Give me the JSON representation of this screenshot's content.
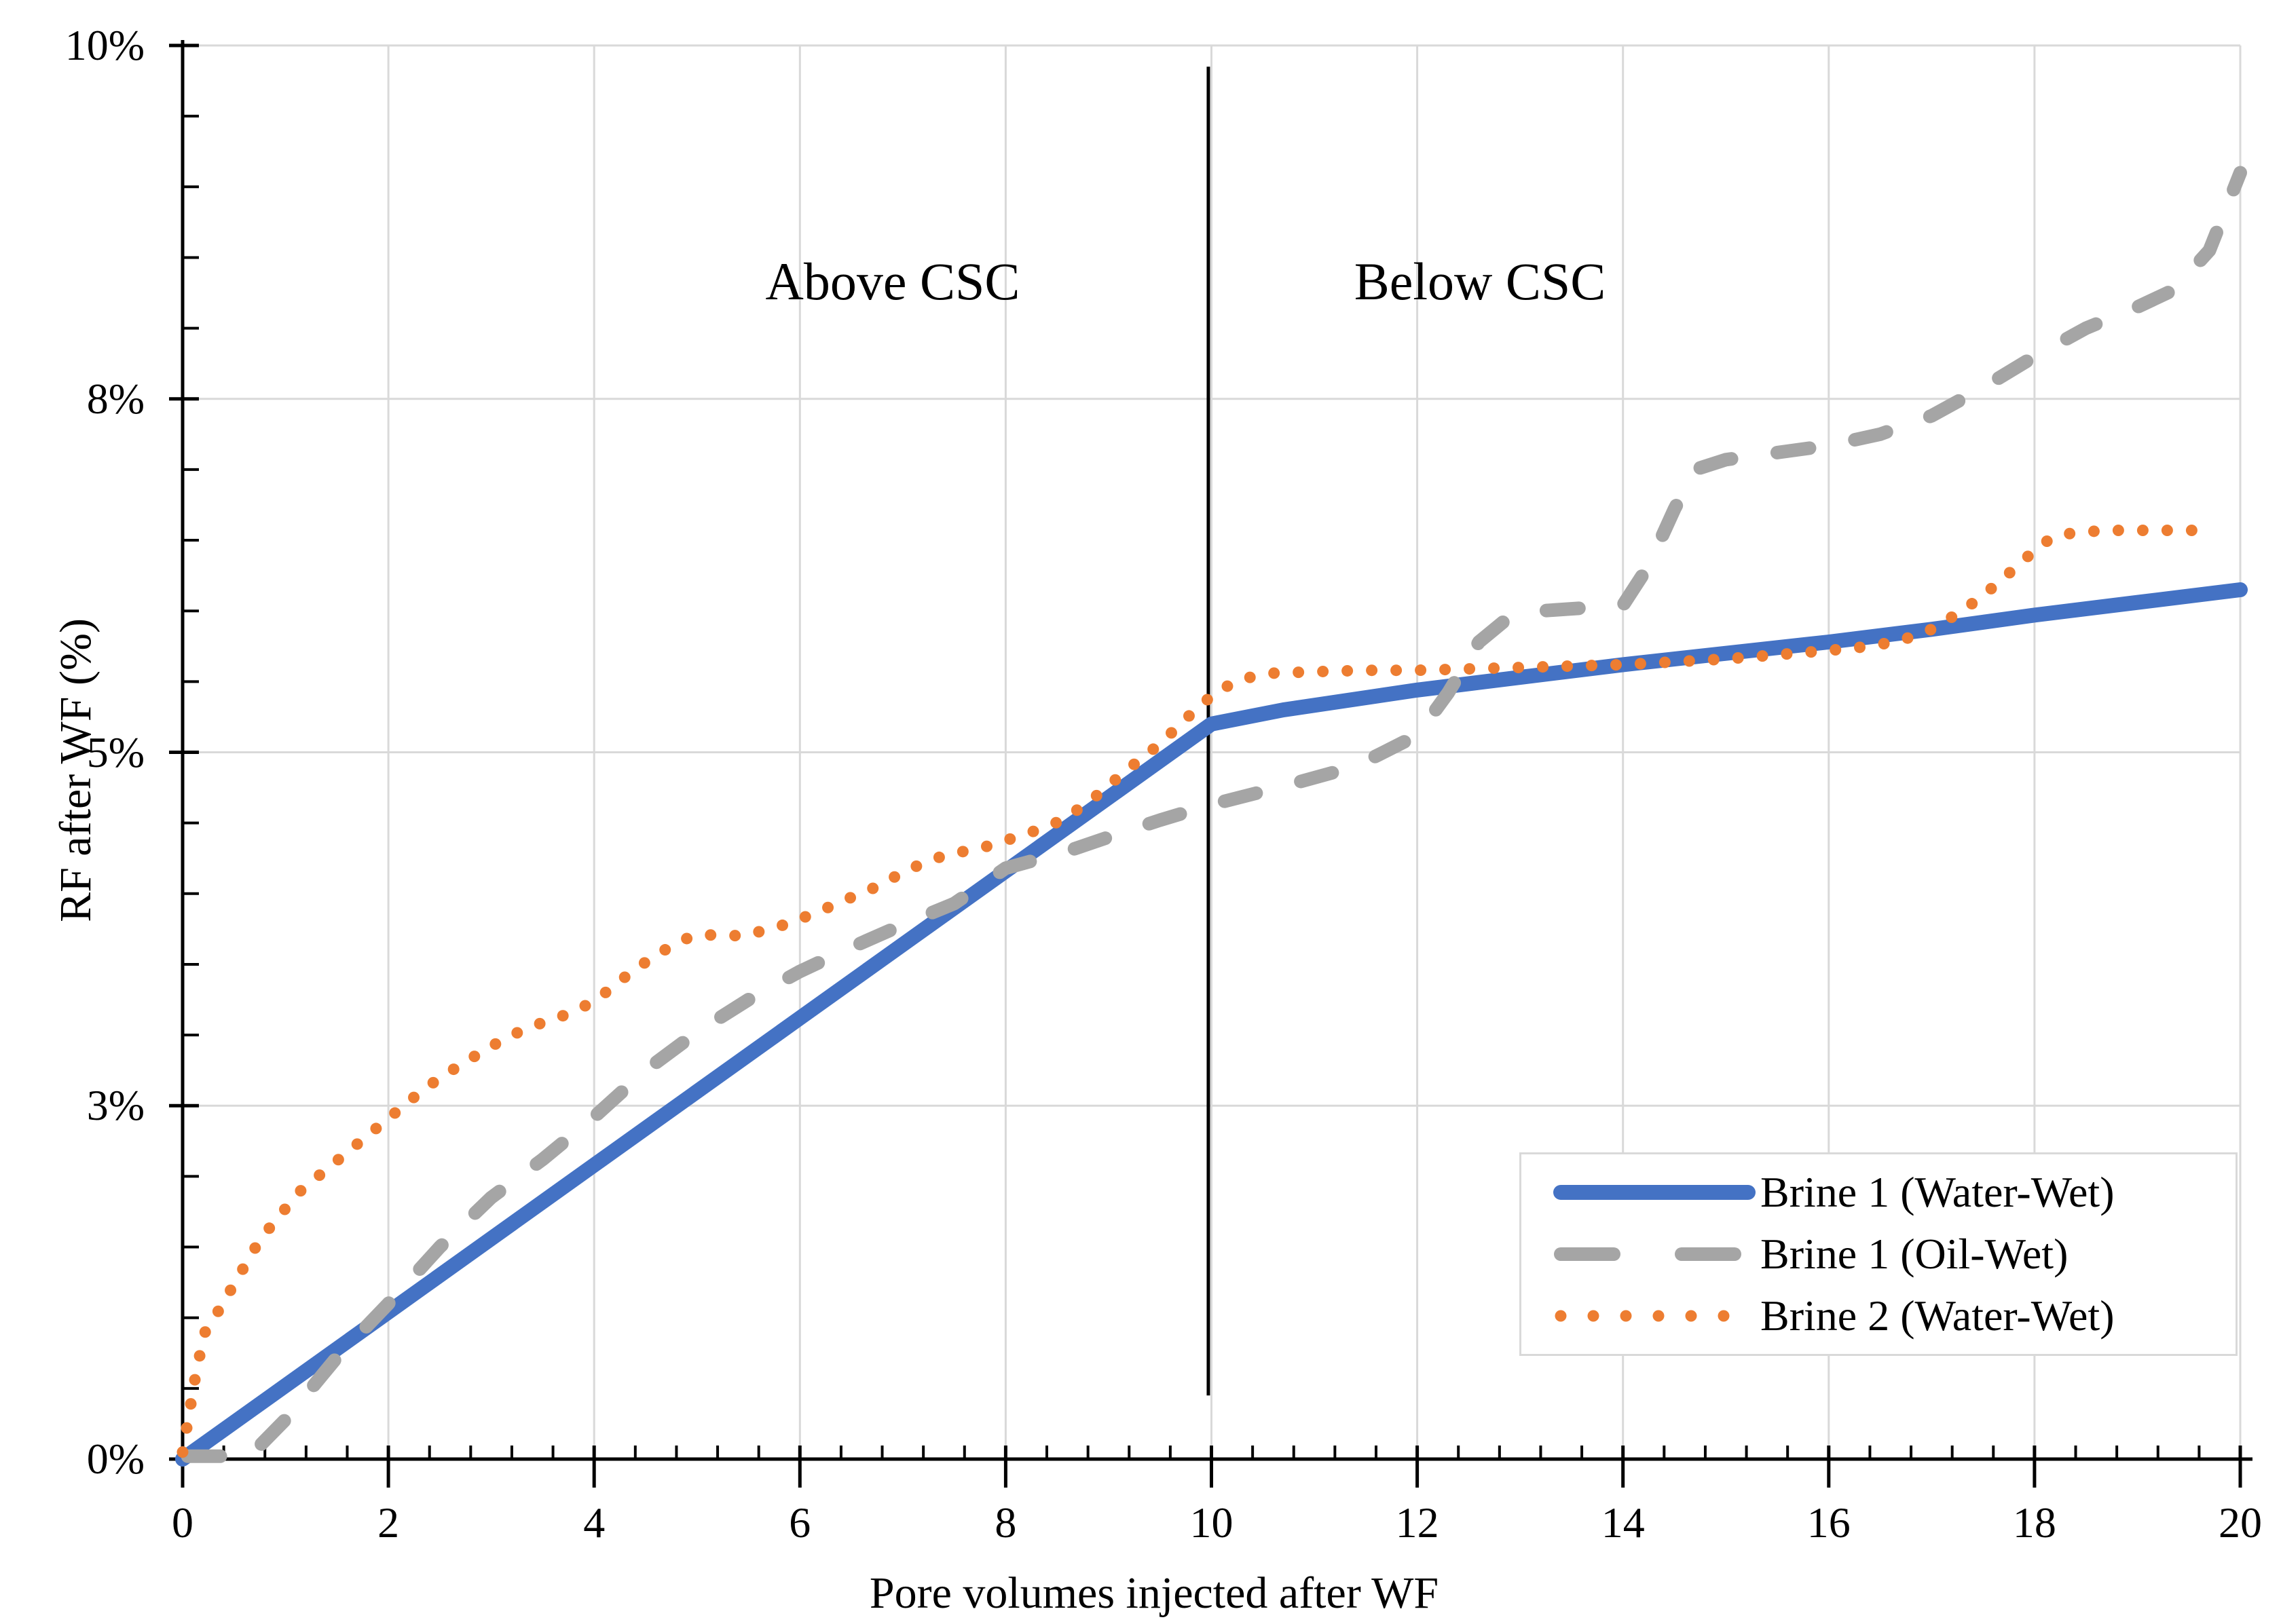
{
  "chart_data": {
    "type": "line",
    "title": "",
    "xlabel": "Pore volumes injected after WF",
    "ylabel": "RF after WF (%)",
    "xlim": [
      0,
      20
    ],
    "ylim": [
      0,
      10
    ],
    "grid": true,
    "background_color": "#ffffff",
    "gridline_color": "#d9d9d9",
    "axis_color": "#000000",
    "x_major_ticks": [
      {
        "value": 0,
        "label": "0"
      },
      {
        "value": 2,
        "label": "2"
      },
      {
        "value": 4,
        "label": "4"
      },
      {
        "value": 6,
        "label": "6"
      },
      {
        "value": 8,
        "label": "8"
      },
      {
        "value": 10,
        "label": "10"
      },
      {
        "value": 12,
        "label": "12"
      },
      {
        "value": 14,
        "label": "14"
      },
      {
        "value": 16,
        "label": "16"
      },
      {
        "value": 18,
        "label": "18"
      },
      {
        "value": 20,
        "label": "20"
      }
    ],
    "y_major_ticks": [
      {
        "value": 0,
        "label": "0%"
      },
      {
        "value": 2.5,
        "label": "3%"
      },
      {
        "value": 5,
        "label": "5%"
      },
      {
        "value": 7.5,
        "label": "8%"
      },
      {
        "value": 10,
        "label": "10%"
      }
    ],
    "x_minor_step": 0.4,
    "y_minor_step": 0.5,
    "annotations": [
      {
        "text": "Above CSC",
        "x": 6.9,
        "y": 8.35
      },
      {
        "text": "Below CSC",
        "x": 12.6,
        "y": 8.35
      }
    ],
    "divider_line": {
      "x": 9.97,
      "y_from": 0.45,
      "y_to": 9.85,
      "color": "#000000"
    },
    "legend_position": "bottom-right",
    "series": [
      {
        "name": "Brine 1 (Water-Wet)",
        "style": "solid",
        "color": "#4472c4",
        "points": [
          [
            0,
            0
          ],
          [
            2,
            1.04
          ],
          [
            4,
            2.08
          ],
          [
            6,
            3.12
          ],
          [
            8,
            4.16
          ],
          [
            9,
            4.68
          ],
          [
            10,
            5.2
          ],
          [
            10.7,
            5.3
          ],
          [
            12,
            5.44
          ],
          [
            13,
            5.53
          ],
          [
            14,
            5.62
          ],
          [
            15,
            5.7
          ],
          [
            16,
            5.78
          ],
          [
            17,
            5.87
          ],
          [
            18,
            5.97
          ],
          [
            19,
            6.06
          ],
          [
            20,
            6.15
          ]
        ]
      },
      {
        "name": "Brine 1 (Oil-Wet)",
        "style": "dashed",
        "color": "#a5a5a5",
        "points": [
          [
            0.05,
            0.02
          ],
          [
            0.65,
            0.02
          ],
          [
            1,
            0.28
          ],
          [
            1.5,
            0.72
          ],
          [
            2,
            1.1
          ],
          [
            2.5,
            1.5
          ],
          [
            3,
            1.85
          ],
          [
            3.5,
            2.12
          ],
          [
            4,
            2.42
          ],
          [
            4.5,
            2.75
          ],
          [
            5,
            3.02
          ],
          [
            5.5,
            3.25
          ],
          [
            6,
            3.45
          ],
          [
            6.5,
            3.62
          ],
          [
            7,
            3.78
          ],
          [
            7.5,
            3.93
          ],
          [
            8,
            4.18
          ],
          [
            8.6,
            4.3
          ],
          [
            9,
            4.4
          ],
          [
            9.5,
            4.52
          ],
          [
            10,
            4.63
          ],
          [
            10.7,
            4.76
          ],
          [
            11.4,
            4.9
          ],
          [
            12,
            5.12
          ],
          [
            12.3,
            5.42
          ],
          [
            12.6,
            5.78
          ],
          [
            12.9,
            5.96
          ],
          [
            13.2,
            6.0
          ],
          [
            14,
            6.04
          ],
          [
            14.25,
            6.32
          ],
          [
            14.5,
            6.72
          ],
          [
            14.7,
            7.0
          ],
          [
            15,
            7.07
          ],
          [
            15.5,
            7.12
          ],
          [
            16,
            7.17
          ],
          [
            16.5,
            7.25
          ],
          [
            17,
            7.38
          ],
          [
            17.5,
            7.58
          ],
          [
            18,
            7.8
          ],
          [
            18.5,
            8.0
          ],
          [
            19,
            8.15
          ],
          [
            19.35,
            8.27
          ],
          [
            19.7,
            8.55
          ],
          [
            20,
            9.1
          ]
        ]
      },
      {
        "name": "Brine 2 (Water-Wet)",
        "style": "dotted",
        "color": "#ed7d31",
        "points": [
          [
            0,
            0.05
          ],
          [
            0.07,
            0.35
          ],
          [
            0.14,
            0.65
          ],
          [
            0.22,
            0.9
          ],
          [
            0.35,
            1.05
          ],
          [
            0.55,
            1.3
          ],
          [
            0.75,
            1.55
          ],
          [
            0.95,
            1.73
          ],
          [
            1.15,
            1.9
          ],
          [
            1.35,
            2.02
          ],
          [
            1.55,
            2.14
          ],
          [
            1.75,
            2.26
          ],
          [
            1.95,
            2.38
          ],
          [
            2.15,
            2.5
          ],
          [
            2.35,
            2.62
          ],
          [
            2.55,
            2.72
          ],
          [
            2.75,
            2.81
          ],
          [
            2.95,
            2.9
          ],
          [
            3.15,
            2.98
          ],
          [
            3.35,
            3.05
          ],
          [
            3.55,
            3.1
          ],
          [
            3.75,
            3.15
          ],
          [
            3.95,
            3.22
          ],
          [
            4.15,
            3.32
          ],
          [
            4.35,
            3.44
          ],
          [
            4.55,
            3.54
          ],
          [
            4.75,
            3.63
          ],
          [
            4.95,
            3.7
          ],
          [
            5.2,
            3.71
          ],
          [
            5.45,
            3.7
          ],
          [
            5.65,
            3.74
          ],
          [
            5.9,
            3.79
          ],
          [
            6.1,
            3.85
          ],
          [
            6.3,
            3.91
          ],
          [
            6.55,
            3.99
          ],
          [
            6.75,
            4.05
          ],
          [
            6.95,
            4.13
          ],
          [
            7.15,
            4.2
          ],
          [
            7.4,
            4.27
          ],
          [
            7.6,
            4.3
          ],
          [
            7.85,
            4.34
          ],
          [
            8.1,
            4.4
          ],
          [
            8.35,
            4.46
          ],
          [
            8.55,
            4.52
          ],
          [
            8.75,
            4.62
          ],
          [
            8.95,
            4.73
          ],
          [
            9.15,
            4.86
          ],
          [
            9.4,
            5.0
          ],
          [
            9.6,
            5.13
          ],
          [
            9.8,
            5.27
          ],
          [
            10.05,
            5.43
          ],
          [
            10.3,
            5.52
          ],
          [
            10.6,
            5.56
          ],
          [
            11,
            5.57
          ],
          [
            11.5,
            5.58
          ],
          [
            12,
            5.58
          ],
          [
            12.5,
            5.59
          ],
          [
            13,
            5.6
          ],
          [
            13.5,
            5.61
          ],
          [
            14,
            5.62
          ],
          [
            14.5,
            5.64
          ],
          [
            15,
            5.66
          ],
          [
            15.5,
            5.69
          ],
          [
            16,
            5.72
          ],
          [
            16.4,
            5.75
          ],
          [
            16.7,
            5.79
          ],
          [
            17,
            5.87
          ],
          [
            17.25,
            5.98
          ],
          [
            17.45,
            6.08
          ],
          [
            17.65,
            6.2
          ],
          [
            17.85,
            6.33
          ],
          [
            18.05,
            6.46
          ],
          [
            18.2,
            6.53
          ],
          [
            18.45,
            6.56
          ],
          [
            18.8,
            6.57
          ],
          [
            19.2,
            6.57
          ],
          [
            19.6,
            6.57
          ]
        ]
      }
    ]
  }
}
